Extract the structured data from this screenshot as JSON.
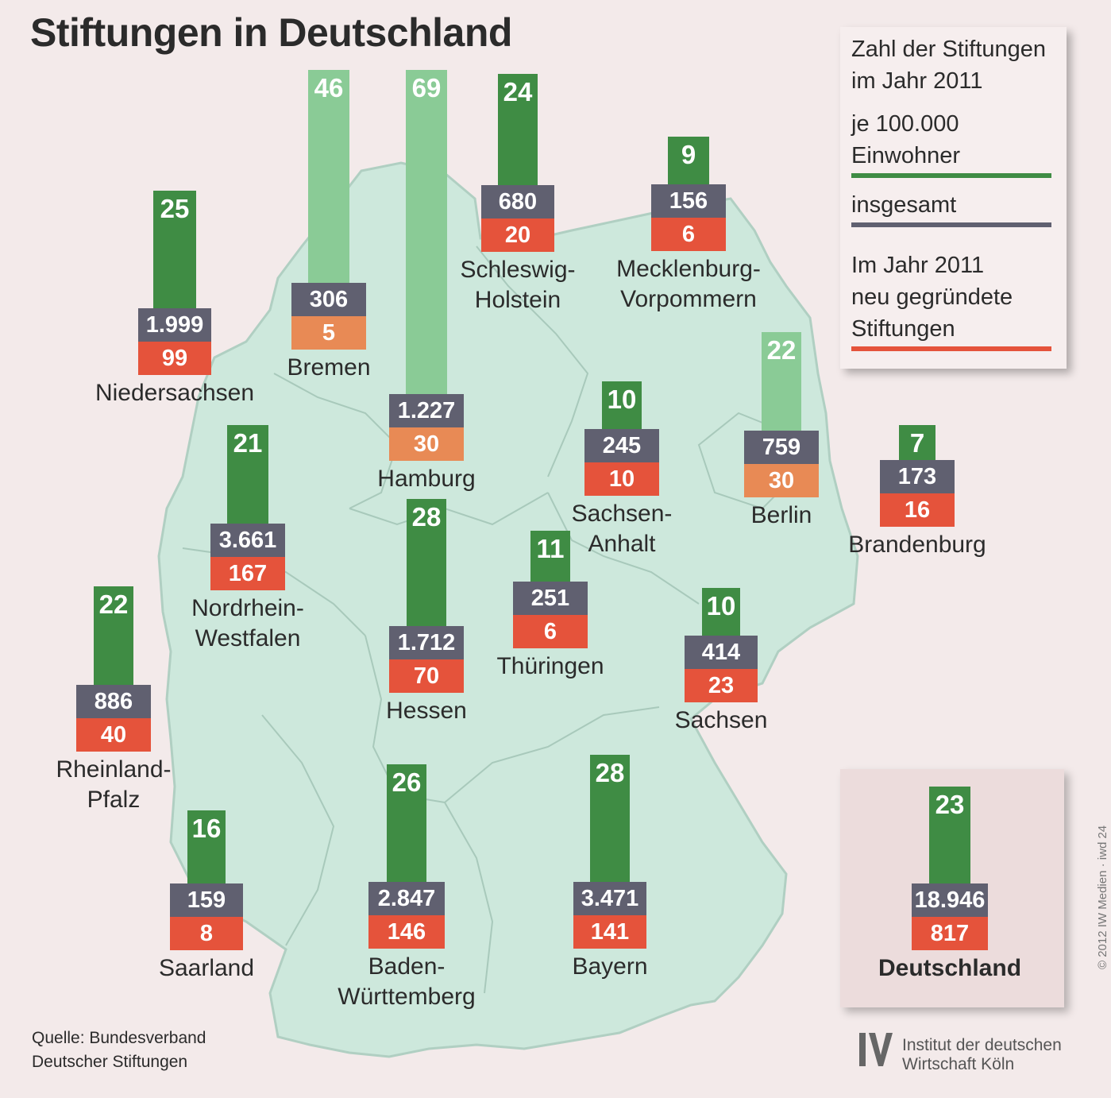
{
  "title": "Stiftungen in Deutschland",
  "legend": {
    "heading_line1": "Zahl der Stiftungen",
    "heading_line2": "im Jahr 2011",
    "per_capita_line1": "je 100.000",
    "per_capita_line2": "Einwohner",
    "total": "insgesamt",
    "new_line1": "Im Jahr 2011",
    "new_line2": "neu gegründete",
    "new_line3": "Stiftungen"
  },
  "colors": {
    "per_capita": "#3f8c44",
    "per_capita_city_state": "#8acb96",
    "total": "#606070",
    "new": "#e5533b",
    "new_city_state": "#e88a55",
    "map_fill": "#cde8dc"
  },
  "states": [
    {
      "name1": "Niedersachsen",
      "name2": "",
      "per100k": "25",
      "total": "1.999",
      "new": "99"
    },
    {
      "name1": "Bremen",
      "name2": "",
      "per100k": "46",
      "total": "306",
      "new": "5"
    },
    {
      "name1": "Hamburg",
      "name2": "",
      "per100k": "69",
      "total": "1.227",
      "new": "30"
    },
    {
      "name1": "Schleswig-",
      "name2": "Holstein",
      "per100k": "24",
      "total": "680",
      "new": "20"
    },
    {
      "name1": "Mecklenburg-",
      "name2": "Vorpommern",
      "per100k": "9",
      "total": "156",
      "new": "6"
    },
    {
      "name1": "Berlin",
      "name2": "",
      "per100k": "22",
      "total": "759",
      "new": "30"
    },
    {
      "name1": "Sachsen-",
      "name2": "Anhalt",
      "per100k": "10",
      "total": "245",
      "new": "10"
    },
    {
      "name1": "Brandenburg",
      "name2": "",
      "per100k": "7",
      "total": "173",
      "new": "16"
    },
    {
      "name1": "Nordrhein-",
      "name2": "Westfalen",
      "per100k": "21",
      "total": "3.661",
      "new": "167"
    },
    {
      "name1": "Hessen",
      "name2": "",
      "per100k": "28",
      "total": "1.712",
      "new": "70"
    },
    {
      "name1": "Thüringen",
      "name2": "",
      "per100k": "11",
      "total": "251",
      "new": "6"
    },
    {
      "name1": "Sachsen",
      "name2": "",
      "per100k": "10",
      "total": "414",
      "new": "23"
    },
    {
      "name1": "Rheinland-",
      "name2": "Pfalz",
      "per100k": "22",
      "total": "886",
      "new": "40"
    },
    {
      "name1": "Saarland",
      "name2": "",
      "per100k": "16",
      "total": "159",
      "new": "8"
    },
    {
      "name1": "Baden-",
      "name2": "Württemberg",
      "per100k": "26",
      "total": "2.847",
      "new": "146"
    },
    {
      "name1": "Bayern",
      "name2": "",
      "per100k": "28",
      "total": "3.471",
      "new": "141"
    }
  ],
  "germany": {
    "name1": "Deutschland",
    "per100k": "23",
    "total": "18.946",
    "new": "817"
  },
  "source": {
    "line1": "Quelle: Bundesverband",
    "line2": "Deutscher Stiftungen"
  },
  "logo": {
    "line1": "Institut der deutschen",
    "line2": "Wirtschaft Köln",
    "icon": "iw-logo-icon"
  },
  "copyright": "© 2012 IW Medien · iwd 24"
}
